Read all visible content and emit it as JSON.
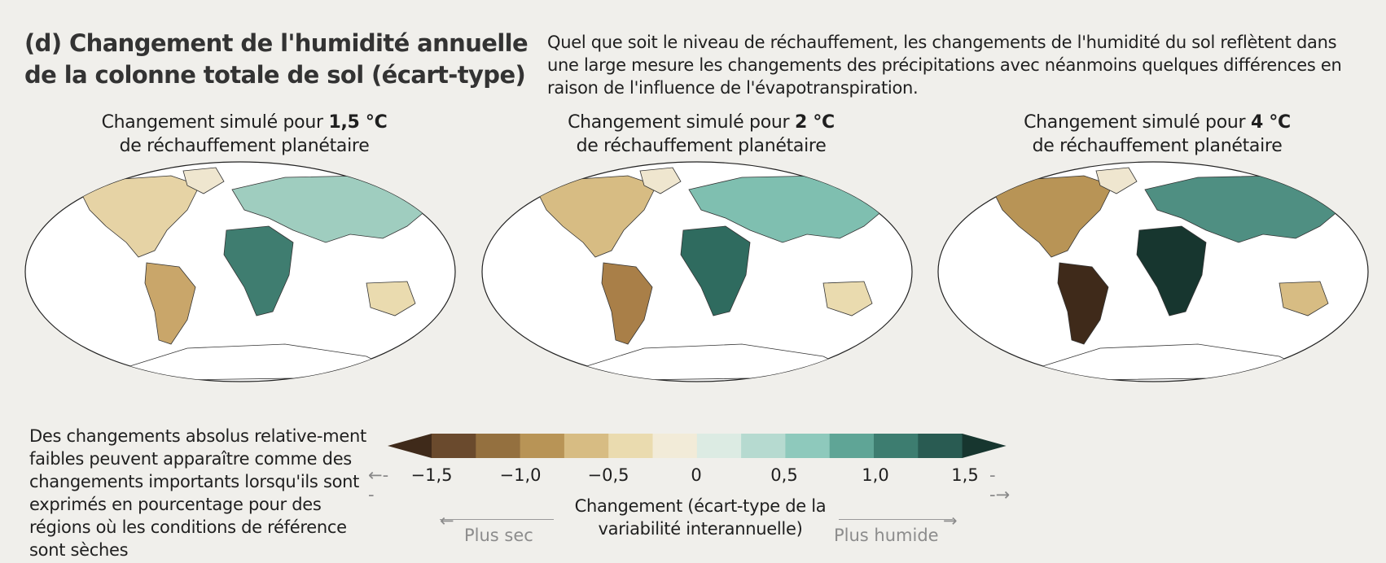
{
  "title": "(d) Changement de l'humidité annuelle de la colonne totale de sol (écart-type)",
  "intro": "Quel que soit le niveau de réchauffement, les changements de l'humidité du sol reflètent dans une large mesure les changements des précipitations avec néanmoins quelques différences en raison de l'influence de l'évapotranspiration.",
  "panels": [
    {
      "prefix": "Changement simulé pour",
      "level": "1,5 °C",
      "suffix": "de réchauffement planétaire"
    },
    {
      "prefix": "Changement simulé pour",
      "level": "2 °C",
      "suffix": "de réchauffement planétaire"
    },
    {
      "prefix": "Changement simulé pour",
      "level": "4 °C",
      "suffix": "de réchauffement planétaire"
    }
  ],
  "note": "Des changements absolus relative-ment faibles peuvent apparaître comme des changements importants lorsqu'ils sont exprimés en pourcentage pour des régions où les conditions de référence sont sèches",
  "colorbar": {
    "ticks": [
      "−1,5",
      "−1,0",
      "−0,5",
      "0",
      "0,5",
      "1,0",
      "1,5"
    ],
    "colors": [
      "#3f2a1a",
      "#6a4a2d",
      "#94703f",
      "#b89456",
      "#d7bc83",
      "#eadbaf",
      "#f2ebd8",
      "#dcebe3",
      "#b6dad0",
      "#8ec9bc",
      "#5fa596",
      "#3d7d70",
      "#295b52",
      "#17362f"
    ],
    "label": "Changement (écart-type de la variabilité interannuelle)",
    "dry_label": "Plus sec",
    "wet_label": "Plus humide"
  }
}
